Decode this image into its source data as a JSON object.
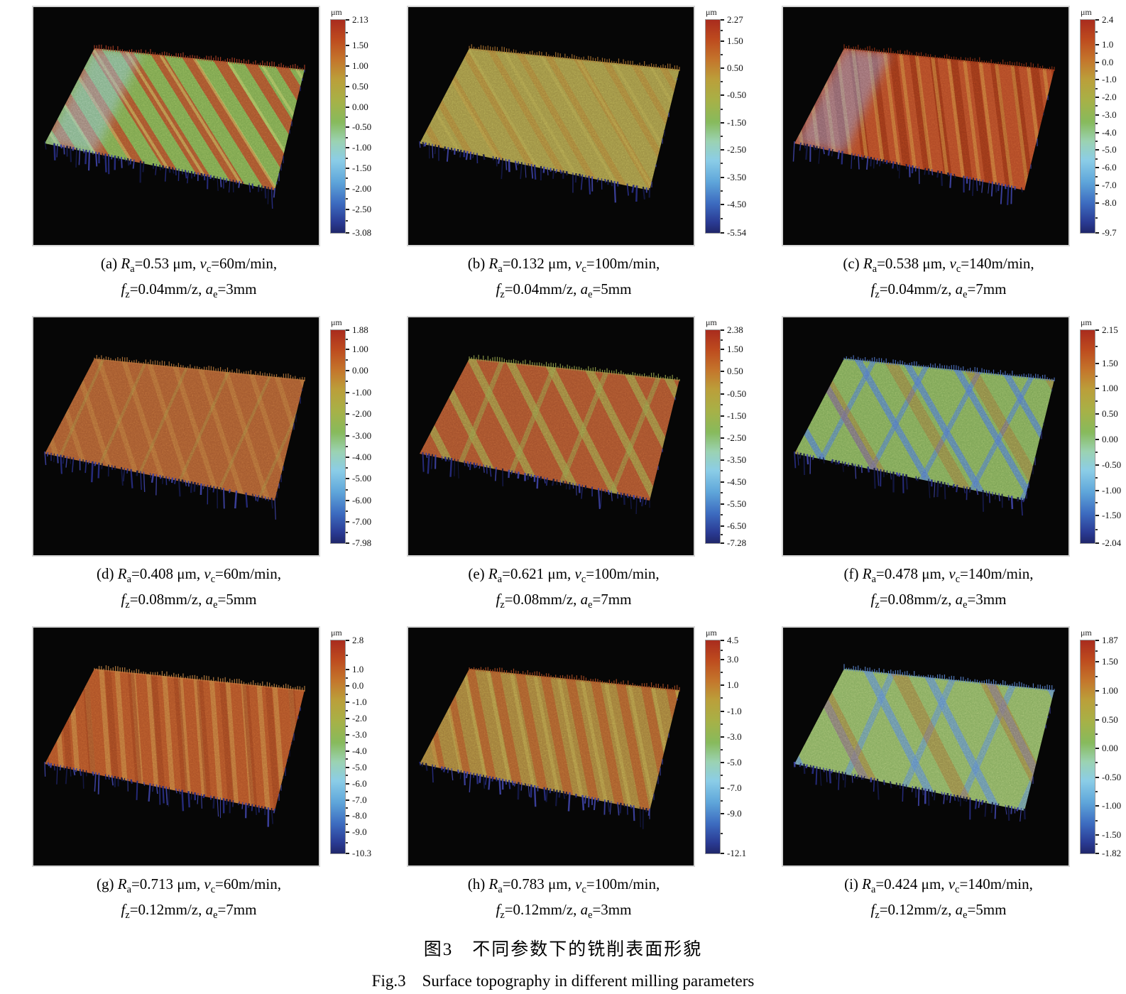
{
  "figure": {
    "caption_zh": "图3　不同参数下的铣削表面形貌",
    "caption_en": "Fig.3　Surface topography in different milling parameters"
  },
  "colorbar_unit": "μm",
  "panels": [
    {
      "id": "a",
      "caption_line1": [
        {
          "t": "(a) "
        },
        {
          "v": "R",
          "s": "a"
        },
        {
          "t": "=0.53 μm, "
        },
        {
          "v": "v",
          "s": "c"
        },
        {
          "t": "=60m/min,"
        }
      ],
      "caption_line2": [
        {
          "v": "f",
          "s": "z"
        },
        {
          "t": "=0.04mm/z, "
        },
        {
          "v": "a",
          "s": "e"
        },
        {
          "t": "=3mm"
        }
      ],
      "colorbar_ticks": [
        "2.13",
        "1.50",
        "1.00",
        "0.50",
        "0.00",
        "-0.50",
        "-1.00",
        "-1.50",
        "-2.00",
        "-2.50",
        "-3.08"
      ],
      "surface": {
        "base": "#79a24c",
        "bands": [
          {
            "c": "#ad3f24",
            "a": -32,
            "w": 15,
            "g": 20,
            "o": 0.8
          },
          {
            "c": "#c9cf6a",
            "a": -32,
            "w": 4,
            "g": 34,
            "o": 0.45
          }
        ],
        "glow": "#8fc3de"
      }
    },
    {
      "id": "b",
      "caption_line1": [
        {
          "t": "(b) "
        },
        {
          "v": "R",
          "s": "a"
        },
        {
          "t": "=0.132 μm, "
        },
        {
          "v": "v",
          "s": "c"
        },
        {
          "t": "=100m/min,"
        }
      ],
      "caption_line2": [
        {
          "v": "f",
          "s": "z"
        },
        {
          "t": "=0.04mm/z, "
        },
        {
          "v": "a",
          "s": "e"
        },
        {
          "t": "=5mm"
        }
      ],
      "colorbar_ticks": [
        "2.27",
        "1.50",
        "0.50",
        "-0.50",
        "-1.50",
        "-2.50",
        "-3.50",
        "-4.50",
        "-5.54"
      ],
      "surface": {
        "base": "#9b8e43",
        "bands": [
          {
            "c": "#a8712f",
            "a": -30,
            "w": 9,
            "g": 24,
            "o": 0.5
          },
          {
            "c": "#b5a84e",
            "a": -30,
            "w": 4,
            "g": 38,
            "o": 0.4
          }
        ]
      }
    },
    {
      "id": "c",
      "caption_line1": [
        {
          "t": "(c) "
        },
        {
          "v": "R",
          "s": "a"
        },
        {
          "t": "=0.538 μm, "
        },
        {
          "v": "v",
          "s": "c"
        },
        {
          "t": "=140m/min,"
        }
      ],
      "caption_line2": [
        {
          "v": "f",
          "s": "z"
        },
        {
          "t": "=0.04mm/z, "
        },
        {
          "v": "a",
          "s": "e"
        },
        {
          "t": "=7mm"
        }
      ],
      "colorbar_ticks": [
        "2.4",
        "1.0",
        "0.0",
        "-1.0",
        "-2.0",
        "-3.0",
        "-4.0",
        "-5.0",
        "-6.0",
        "-7.0",
        "-8.0",
        "-9.7"
      ],
      "surface": {
        "base": "#ae4825",
        "bands": [
          {
            "c": "#8e3014",
            "a": -7,
            "w": 11,
            "g": 17,
            "o": 0.75
          },
          {
            "c": "#c9883f",
            "a": -7,
            "w": 5,
            "g": 17,
            "o": 0.55
          }
        ],
        "glow": "#7e9fd8"
      }
    },
    {
      "id": "d",
      "caption_line1": [
        {
          "t": "(d) "
        },
        {
          "v": "R",
          "s": "a"
        },
        {
          "t": "=0.408 μm, "
        },
        {
          "v": "v",
          "s": "c"
        },
        {
          "t": "=60m/min,"
        }
      ],
      "caption_line2": [
        {
          "v": "f",
          "s": "z"
        },
        {
          "t": "=0.08mm/z, "
        },
        {
          "v": "a",
          "s": "e"
        },
        {
          "t": "=5mm"
        }
      ],
      "colorbar_ticks": [
        "1.88",
        "1.00",
        "0.00",
        "-1.00",
        "-2.00",
        "-3.00",
        "-4.00",
        "-5.00",
        "-6.00",
        "-7.00",
        "-7.98"
      ],
      "surface": {
        "base": "#a2582e",
        "bands": [
          {
            "c": "#b5773b",
            "a": -18,
            "w": 7,
            "g": 26,
            "o": 0.5
          },
          {
            "c": "#97853f",
            "a": 24,
            "w": 4,
            "g": 52,
            "o": 0.4
          }
        ]
      }
    },
    {
      "id": "e",
      "caption_line1": [
        {
          "t": "(e) "
        },
        {
          "v": "R",
          "s": "a"
        },
        {
          "t": "=0.621 μm, "
        },
        {
          "v": "v",
          "s": "c"
        },
        {
          "t": "=100m/min,"
        }
      ],
      "caption_line2": [
        {
          "v": "f",
          "s": "z"
        },
        {
          "t": "=0.08mm/z, "
        },
        {
          "v": "a",
          "s": "e"
        },
        {
          "t": "=7mm"
        }
      ],
      "colorbar_ticks": [
        "2.38",
        "1.50",
        "0.50",
        "-0.50",
        "-1.50",
        "-2.50",
        "-3.50",
        "-4.50",
        "-5.50",
        "-6.50",
        "-7.28"
      ],
      "surface": {
        "base": "#a24f2b",
        "bands": [
          {
            "c": "#93a04a",
            "a": -27,
            "w": 11,
            "g": 36,
            "o": 0.6
          },
          {
            "c": "#8a9747",
            "a": 22,
            "w": 7,
            "g": 64,
            "o": 0.5
          }
        ]
      }
    },
    {
      "id": "f",
      "caption_line1": [
        {
          "t": "(f) "
        },
        {
          "v": "R",
          "s": "a"
        },
        {
          "t": "=0.478 μm, "
        },
        {
          "v": "v",
          "s": "c"
        },
        {
          "t": "=140m/min,"
        }
      ],
      "caption_line2": [
        {
          "v": "f",
          "s": "z"
        },
        {
          "t": "=0.08mm/z, "
        },
        {
          "v": "a",
          "s": "e"
        },
        {
          "t": "=3mm"
        }
      ],
      "colorbar_ticks": [
        "2.15",
        "1.50",
        "1.00",
        "0.50",
        "0.00",
        "-0.50",
        "-1.00",
        "-1.50",
        "-2.04"
      ],
      "surface": {
        "base": "#7ba355",
        "bands": [
          {
            "c": "#4d72c2",
            "a": -30,
            "w": 9,
            "g": 48,
            "o": 0.7
          },
          {
            "c": "#4d72c2",
            "a": 28,
            "w": 7,
            "g": 62,
            "o": 0.6
          },
          {
            "c": "#a05a2e",
            "a": -30,
            "w": 16,
            "g": 76,
            "o": 0.4
          }
        ]
      }
    },
    {
      "id": "g",
      "caption_line1": [
        {
          "t": "(g) "
        },
        {
          "v": "R",
          "s": "a"
        },
        {
          "t": "=0.713 μm, "
        },
        {
          "v": "v",
          "s": "c"
        },
        {
          "t": "=60m/min,"
        }
      ],
      "caption_line2": [
        {
          "v": "f",
          "s": "z"
        },
        {
          "t": "=0.12mm/z, "
        },
        {
          "v": "a",
          "s": "e"
        },
        {
          "t": "=7mm"
        }
      ],
      "colorbar_ticks": [
        "2.8",
        "1.0",
        "0.0",
        "-1.0",
        "-2.0",
        "-3.0",
        "-4.0",
        "-5.0",
        "-6.0",
        "-7.0",
        "-8.0",
        "-9.0",
        "-10.3"
      ],
      "surface": {
        "base": "#ab5026",
        "bands": [
          {
            "c": "#c08343",
            "a": -4,
            "w": 7,
            "g": 15,
            "o": 0.6
          },
          {
            "c": "#8c3a1b",
            "a": -4,
            "w": 9,
            "g": 23,
            "o": 0.5
          }
        ]
      }
    },
    {
      "id": "h",
      "caption_line1": [
        {
          "t": "(h) "
        },
        {
          "v": "R",
          "s": "a"
        },
        {
          "t": "=0.783 μm, "
        },
        {
          "v": "v",
          "s": "c"
        },
        {
          "t": "=100m/min,"
        }
      ],
      "caption_line2": [
        {
          "v": "f",
          "s": "z"
        },
        {
          "t": "=0.12mm/z, "
        },
        {
          "v": "a",
          "s": "e"
        },
        {
          "t": "=3mm"
        }
      ],
      "colorbar_ticks": [
        "4.5",
        "3.0",
        "1.0",
        "-1.0",
        "-3.0",
        "-5.0",
        "-7.0",
        "-9.0",
        "-12.1"
      ],
      "surface": {
        "base": "#9d7a39",
        "bands": [
          {
            "c": "#aa4c23",
            "a": -11,
            "w": 13,
            "g": 21,
            "o": 0.65
          },
          {
            "c": "#b7a64d",
            "a": -11,
            "w": 5,
            "g": 27,
            "o": 0.45
          }
        ]
      }
    },
    {
      "id": "i",
      "caption_line1": [
        {
          "t": "(i) "
        },
        {
          "v": "R",
          "s": "a"
        },
        {
          "t": "=0.424 μm, "
        },
        {
          "v": "v",
          "s": "c"
        },
        {
          "t": "=140m/min,"
        }
      ],
      "caption_line2": [
        {
          "v": "f",
          "s": "z"
        },
        {
          "t": "=0.12mm/z, "
        },
        {
          "v": "a",
          "s": "e"
        },
        {
          "t": "=5mm"
        }
      ],
      "colorbar_ticks": [
        "1.87",
        "1.50",
        "1.00",
        "0.50",
        "0.00",
        "-0.50",
        "-1.00",
        "-1.50",
        "-1.82"
      ],
      "surface": {
        "base": "#85aa5e",
        "bands": [
          {
            "c": "#5883ca",
            "a": -27,
            "w": 11,
            "g": 62,
            "o": 0.65
          },
          {
            "c": "#5883ca",
            "a": 24,
            "w": 9,
            "g": 72,
            "o": 0.55
          },
          {
            "c": "#a25e2e",
            "a": -27,
            "w": 20,
            "g": 86,
            "o": 0.45
          }
        ]
      }
    }
  ]
}
